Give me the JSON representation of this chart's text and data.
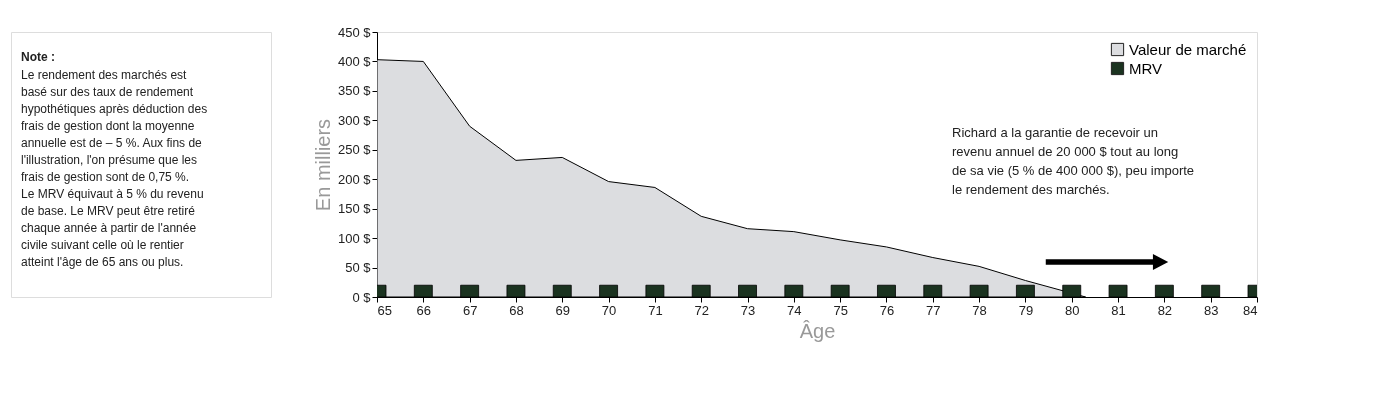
{
  "chart_data": {
    "type": "area",
    "xlabel": "Âge",
    "ylabel": "En milliers",
    "x": [
      65,
      66,
      67,
      68,
      69,
      70,
      71,
      72,
      73,
      74,
      75,
      76,
      77,
      78,
      79,
      80,
      81,
      82,
      83,
      84
    ],
    "xlim": [
      65,
      84
    ],
    "xticks": [
      65,
      66,
      67,
      68,
      69,
      70,
      71,
      72,
      73,
      74,
      75,
      76,
      77,
      78,
      79,
      80,
      81,
      82,
      83,
      84
    ],
    "ylim": [
      0,
      450
    ],
    "yticks": [
      {
        "value": 0,
        "label": "0 $"
      },
      {
        "value": 50,
        "label": "50 $"
      },
      {
        "value": 100,
        "label": "100 $"
      },
      {
        "value": 150,
        "label": "150 $"
      },
      {
        "value": 200,
        "label": "200 $"
      },
      {
        "value": 250,
        "label": "250 $"
      },
      {
        "value": 300,
        "label": "300 $"
      },
      {
        "value": 350,
        "label": "350 $"
      },
      {
        "value": 400,
        "label": "400 $"
      },
      {
        "value": 450,
        "label": "450 $"
      }
    ],
    "series": [
      {
        "name": "Valeur de marché",
        "color": "#dcdde0",
        "x": [
          65,
          66,
          67,
          68,
          69,
          70,
          71,
          72,
          73,
          74,
          75,
          76,
          77,
          78,
          79,
          80.3
        ],
        "values": [
          403,
          400,
          290,
          232,
          237,
          196,
          186,
          137,
          116,
          111,
          97,
          85,
          67,
          52,
          28,
          0
        ]
      },
      {
        "name": "MRV",
        "type": "bar",
        "color": "#1b3320",
        "values": [
          20,
          20,
          20,
          20,
          20,
          20,
          20,
          20,
          20,
          20,
          20,
          20,
          20,
          20,
          20,
          20,
          20,
          20,
          20,
          20
        ]
      }
    ],
    "legend": "top right",
    "annotations": [
      "Note :",
      "Le rendement des marchés est\nbasé sur des taux de rendement\nhypothétiques après déduction des\nfrais de gestion dont la moyenne\nannuelle est de – 5 %. Aux fins de\nl'illustration, l'on présume que les\nfrais de gestion sont de 0,75 %.\nLe MRV équivaut à 5 % du revenu\nde base. Le MRV peut être retiré\nchaque année à partir de l'année\ncivile suivant celle où le rentier\natteint l'âge de 65 ans ou plus.",
      "Richard a la garantie de recevoir un\nrevenu annuel de 20 000 $ tout au long\nde sa vie (5 % de 400 000 $), peu importe\nle rendement des marchés."
    ]
  }
}
